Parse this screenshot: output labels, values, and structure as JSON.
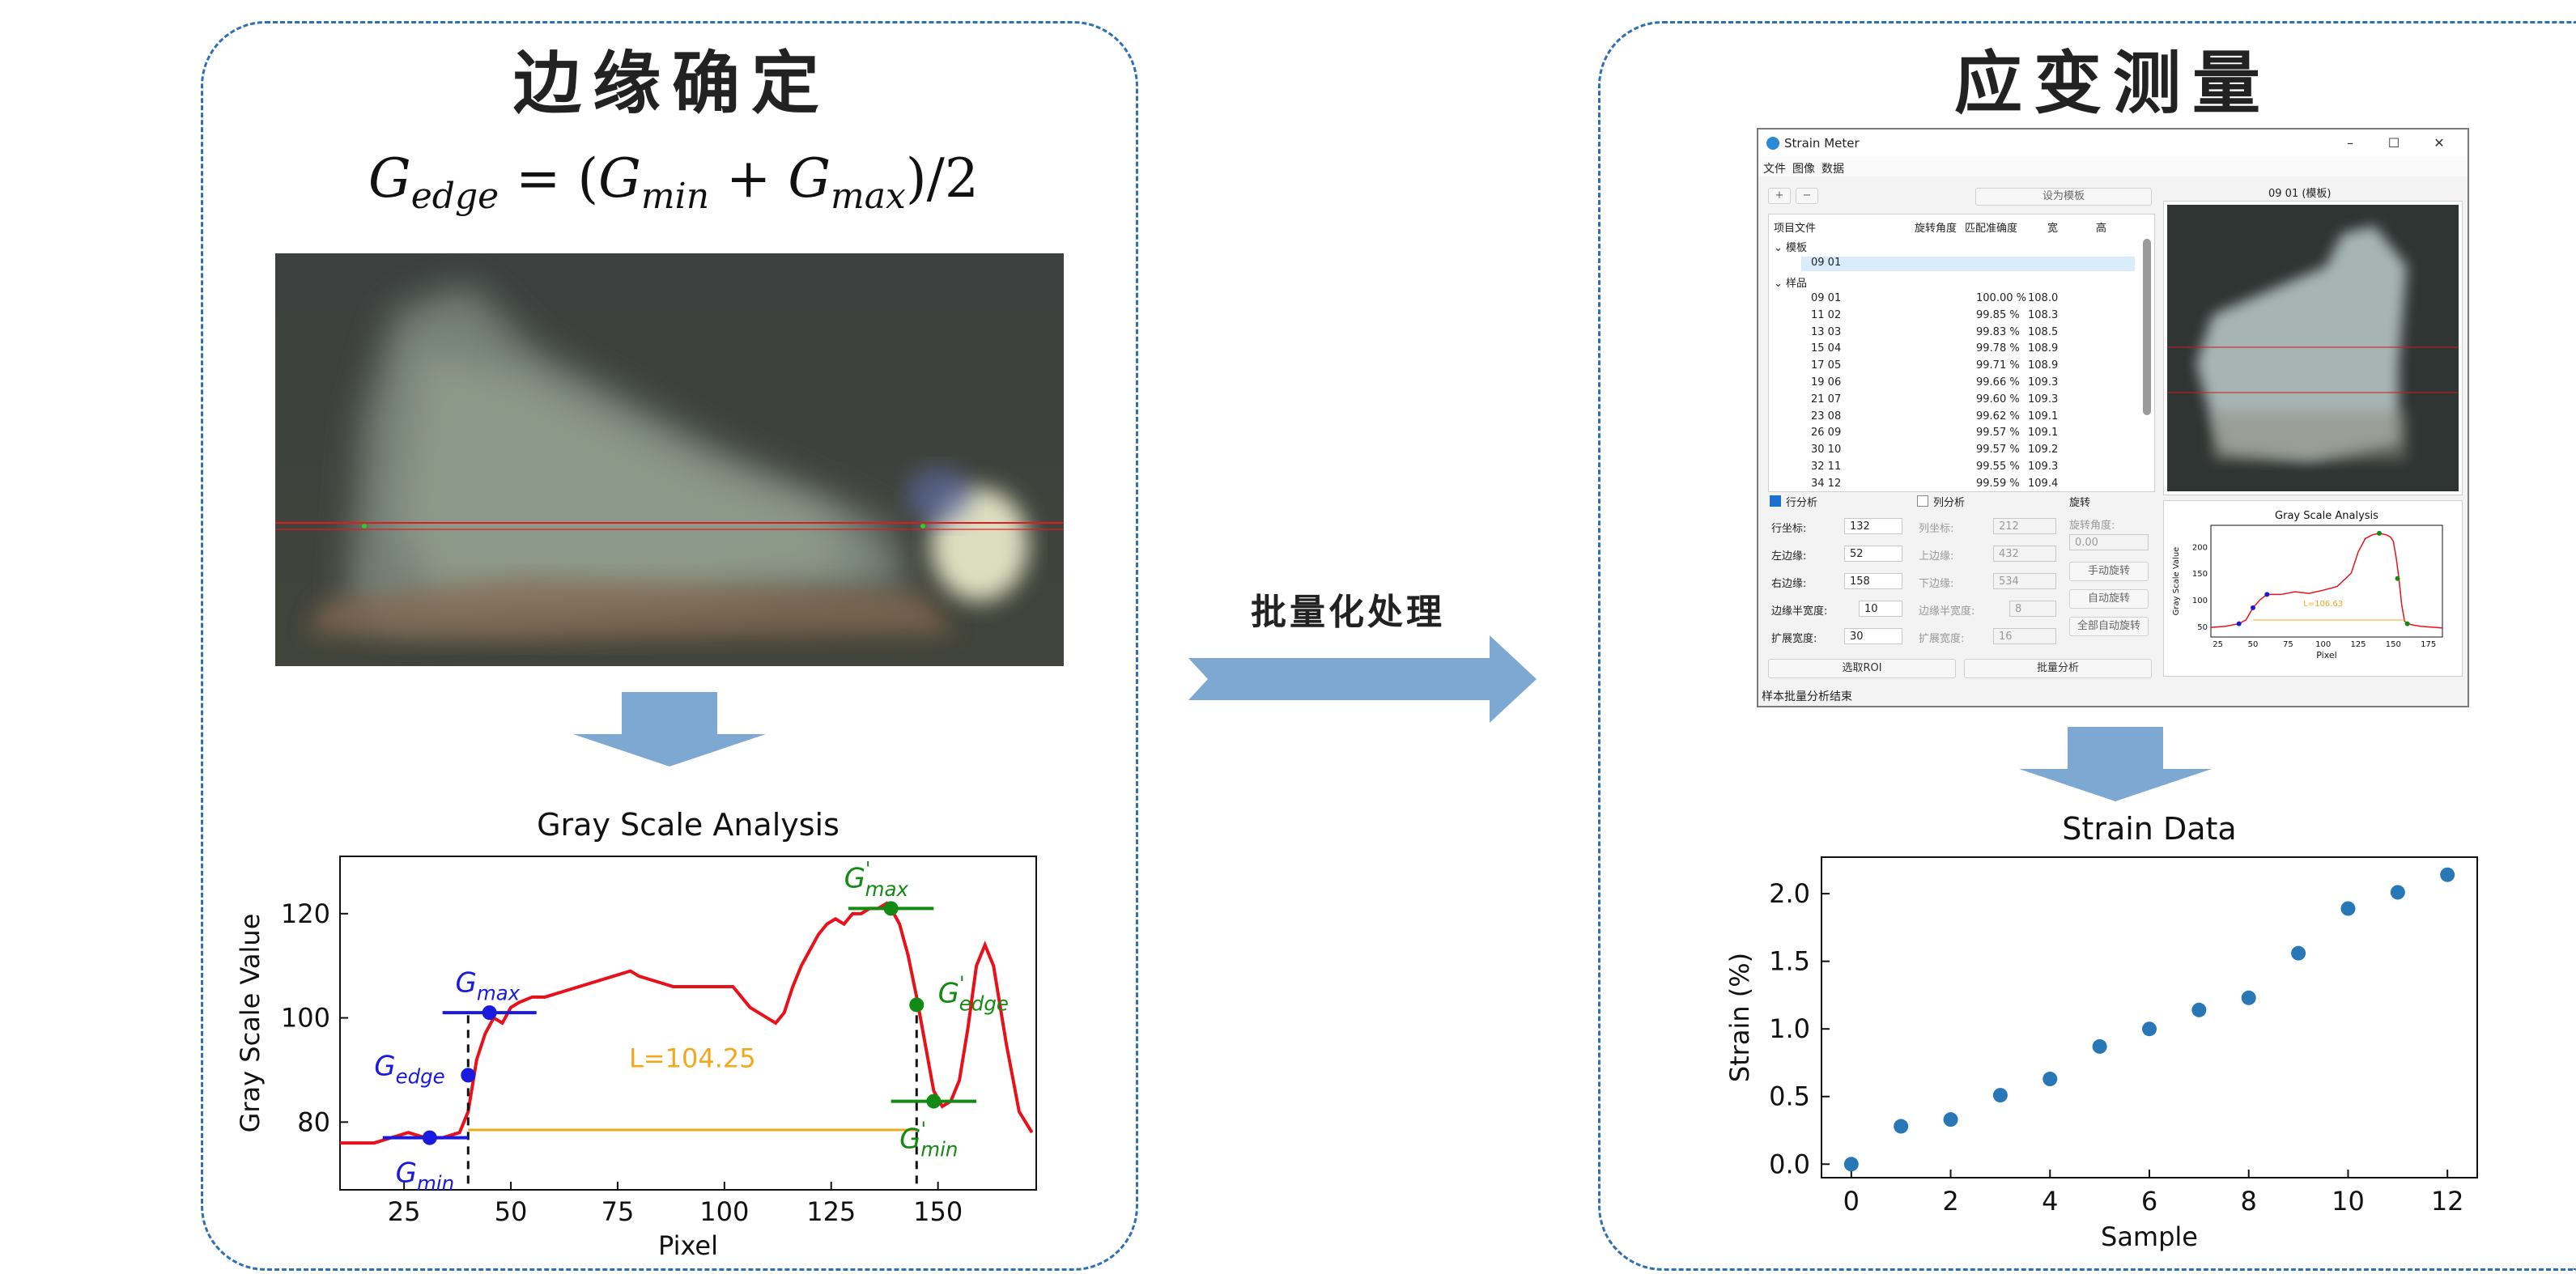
{
  "left_panel": {
    "title": "边缘确定",
    "formula": {
      "lhs_base": "G",
      "lhs_sub": "edge",
      "op": " = (",
      "a_base": "G",
      "a_sub": "min",
      "plus": " + ",
      "b_base": "G",
      "b_sub": "max",
      "tail": ")/2"
    }
  },
  "middle": {
    "label": "批量化处理"
  },
  "right_panel": {
    "title": "应变测量"
  },
  "app": {
    "window_title": "Strain Meter",
    "menu": [
      "文件",
      "图像",
      "数据"
    ],
    "add_label": "+",
    "remove_label": "−",
    "set_template_label": "设为模板",
    "tree_headers": [
      "项目文件",
      "旋转角度",
      "匹配准确度",
      "宽",
      "高"
    ],
    "template_group": "模板",
    "template_item": "09 01",
    "sample_group": "样品",
    "samples": [
      {
        "name": "09 01",
        "acc": "100.00 %",
        "w": "108.0"
      },
      {
        "name": "11 02",
        "acc": "99.85 %",
        "w": "108.3"
      },
      {
        "name": "13 03",
        "acc": "99.83 %",
        "w": "108.5"
      },
      {
        "name": "15 04",
        "acc": "99.78 %",
        "w": "108.9"
      },
      {
        "name": "17 05",
        "acc": "99.71 %",
        "w": "108.9"
      },
      {
        "name": "19 06",
        "acc": "99.66 %",
        "w": "109.3"
      },
      {
        "name": "21 07",
        "acc": "99.60 %",
        "w": "109.3"
      },
      {
        "name": "23 08",
        "acc": "99.62 %",
        "w": "109.1"
      },
      {
        "name": "26 09",
        "acc": "99.57 %",
        "w": "109.1"
      },
      {
        "name": "30 10",
        "acc": "99.57 %",
        "w": "109.2"
      },
      {
        "name": "32 11",
        "acc": "99.55 %",
        "w": "109.3"
      },
      {
        "name": "34 12",
        "acc": "99.59 %",
        "w": "109.4"
      }
    ],
    "row_analysis": {
      "label": "行分析",
      "coord_label": "行坐标:",
      "coord": "132",
      "edge1_label": "左边缘:",
      "edge1": "52",
      "edge2_label": "右边缘:",
      "edge2": "158",
      "halfwidth_label": "边缘半宽度:",
      "halfwidth": "10",
      "extend_label": "扩展宽度:",
      "extend": "30"
    },
    "col_analysis": {
      "label": "列分析",
      "coord_label": "列坐标:",
      "coord": "212",
      "edge1_label": "上边缘:",
      "edge1": "432",
      "edge2_label": "下边缘:",
      "edge2": "534",
      "halfwidth_label": "边缘半宽度:",
      "halfwidth": "8",
      "extend_label": "扩展宽度:",
      "extend": "16"
    },
    "rotation": {
      "label": "旋转",
      "angle_label": "旋转角度:",
      "angle": "0.00",
      "manual": "手动旋转",
      "auto": "自动旋转",
      "all_auto": "全部自动旋转"
    },
    "select_roi": "选取ROI",
    "batch": "批量分析",
    "status": "样本批量分析结束",
    "preview_title": "09 01 (模板)"
  },
  "annotations": {
    "gmin": "G",
    "gmin_sub": "min",
    "gmax": "G",
    "gmax_sub": "max",
    "gedge": "G",
    "gedge_sub": "edge",
    "gmax_p": "G",
    "gmax_p_sub": "max",
    "gmax_p_sup": "'",
    "gedge_p": "G",
    "gedge_p_sub": "edge",
    "gedge_p_sup": "'",
    "gmin_p": "G",
    "gmin_p_sub": "min",
    "gmin_p_sup": "'",
    "length": "L=104.25",
    "mini_length": "L=106.63"
  },
  "chart_data": [
    {
      "type": "line",
      "title": "Gray Scale Analysis",
      "xlabel": "Pixel",
      "ylabel": "Gray Scale Value",
      "xlim": [
        10,
        173
      ],
      "ylim": [
        67,
        131
      ],
      "xticks": [
        25,
        50,
        75,
        100,
        125,
        150
      ],
      "yticks": [
        80,
        100,
        120
      ],
      "grid": false,
      "series": [
        {
          "color": "#e8111a",
          "x": [
            10,
            18,
            22,
            26,
            30,
            34,
            38,
            40,
            42,
            44,
            46,
            48,
            50,
            52,
            55,
            58,
            62,
            66,
            70,
            74,
            78,
            80,
            84,
            88,
            90,
            94,
            98,
            102,
            106,
            110,
            112,
            114,
            116,
            118,
            120,
            122,
            124,
            126,
            128,
            130,
            132,
            134,
            136,
            138,
            139,
            141,
            143,
            145,
            147,
            149,
            151,
            153,
            155,
            157,
            159,
            161,
            163,
            166,
            169,
            172
          ],
          "y": [
            76,
            76,
            77,
            78,
            77,
            77,
            78,
            82,
            92,
            97,
            100,
            99,
            102,
            103,
            104,
            104,
            105,
            106,
            107,
            108,
            109,
            108,
            107,
            106,
            106,
            106,
            106,
            106,
            102,
            100,
            99,
            101,
            106,
            110,
            113,
            116,
            118,
            119,
            118,
            120,
            120,
            121,
            121,
            122,
            121,
            118,
            112,
            104,
            95,
            86,
            83,
            84,
            88,
            98,
            110,
            114,
            110,
            95,
            82,
            78
          ]
        }
      ],
      "markers": [
        {
          "name": "Gmin",
          "x": 31,
          "y": 77,
          "color": "#1a1adf"
        },
        {
          "name": "Gedge",
          "x": 40,
          "y": 89,
          "color": "#1a1adf"
        },
        {
          "name": "Gmax",
          "x": 45,
          "y": 101,
          "color": "#1a1adf"
        },
        {
          "name": "G'max",
          "x": 139,
          "y": 121,
          "color": "#138a13"
        },
        {
          "name": "G'edge",
          "x": 145,
          "y": 102.5,
          "color": "#138a13"
        },
        {
          "name": "G'min",
          "x": 149,
          "y": 84,
          "color": "#138a13"
        }
      ],
      "edges": [
        40,
        145
      ],
      "length_line_y": 78.5
    },
    {
      "type": "scatter",
      "title": "Strain Data",
      "xlabel": "Sample",
      "ylabel": "Strain (%)",
      "xlim": [
        -0.6,
        12.6
      ],
      "ylim": [
        -0.1,
        2.27
      ],
      "xticks": [
        0,
        2,
        4,
        6,
        8,
        10,
        12
      ],
      "yticks": [
        0.0,
        0.5,
        1.0,
        1.5,
        2.0
      ],
      "ytick_labels": [
        "0.0",
        "0.5",
        "1.0",
        "1.5",
        "2.0"
      ],
      "grid": false,
      "color": "#2878b8",
      "x": [
        0,
        1,
        2,
        3,
        4,
        5,
        6,
        7,
        8,
        9,
        10,
        11,
        12
      ],
      "y": [
        0.0,
        0.28,
        0.33,
        0.51,
        0.63,
        0.87,
        1.0,
        1.14,
        1.23,
        1.56,
        1.89,
        2.01,
        2.14
      ]
    },
    {
      "type": "line",
      "title": "Gray Scale Analysis",
      "xlabel": "Pixel",
      "ylabel": "Gray Scale Value",
      "xlim": [
        20,
        185
      ],
      "ylim": [
        30,
        240
      ],
      "xticks": [
        25,
        50,
        75,
        100,
        125,
        150,
        175
      ],
      "yticks": [
        50,
        100,
        150,
        200
      ],
      "grid": false,
      "x": [
        20,
        30,
        40,
        45,
        50,
        55,
        60,
        70,
        80,
        90,
        100,
        110,
        120,
        125,
        130,
        135,
        140,
        145,
        148,
        150,
        152,
        154,
        156,
        158,
        160,
        165,
        170,
        175,
        180,
        185
      ],
      "y": [
        48,
        50,
        55,
        62,
        85,
        100,
        110,
        110,
        115,
        112,
        118,
        125,
        150,
        190,
        215,
        222,
        225,
        222,
        218,
        210,
        180,
        140,
        90,
        60,
        55,
        52,
        50,
        49,
        48,
        47
      ]
    }
  ]
}
